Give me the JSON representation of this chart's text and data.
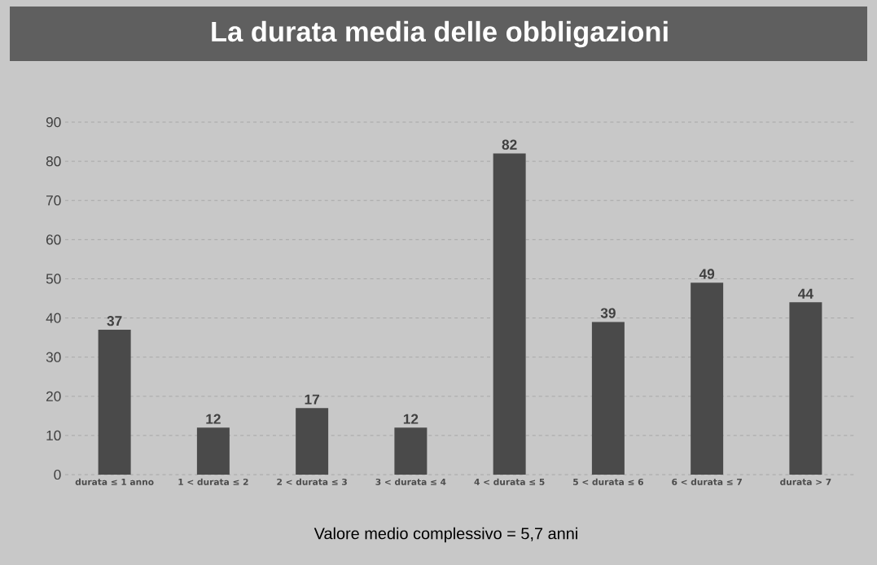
{
  "chart_data": {
    "type": "bar",
    "title": "La durata media delle obbligazioni",
    "categories": [
      "durata ≤ 1 anno",
      "1 < durata ≤ 2",
      "2 < durata ≤ 3",
      "3 < durata ≤ 4",
      "4 < durata ≤ 5",
      "5 < durata ≤ 6",
      "6 < durata ≤ 7",
      "durata > 7"
    ],
    "values": [
      37,
      12,
      17,
      12,
      82,
      39,
      49,
      44
    ],
    "color": "#4a4a4a",
    "ylim": [
      0,
      90
    ],
    "yticks": [
      0,
      10,
      20,
      30,
      40,
      50,
      60,
      70,
      80,
      90
    ],
    "grid": "y",
    "data_labels": true,
    "annotations": [
      "Valore medio complessivo = 5,7 anni"
    ]
  }
}
